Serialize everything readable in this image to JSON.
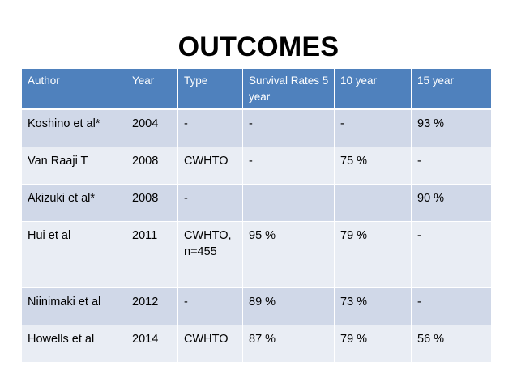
{
  "slide": {
    "title": "OUTCOMES"
  },
  "table": {
    "headers": {
      "author": "Author",
      "year": "Year",
      "type": "Type",
      "survival_5": "Survival Rates 5 year",
      "survival_10": "10  year",
      "survival_15": "15 year"
    },
    "rows": [
      {
        "author": "Koshino et al*",
        "year": "2004",
        "type": "-",
        "s5": "-",
        "s10": "-",
        "s15": "93 %"
      },
      {
        "author": "Van Raaji T",
        "year": "2008",
        "type": "CWHTO",
        "s5": "-",
        "s10": "75 %",
        "s15": "-"
      },
      {
        "author": "Akizuki et al*",
        "year": "2008",
        "type": "-",
        "s5": "",
        "s10": "",
        "s15": "90 %"
      },
      {
        "author": "Hui et al",
        "year": "2011",
        "type": "CWHTO, n=455",
        "s5": "95 %",
        "s10": "79 %",
        "s15": "-"
      },
      {
        "author": "Niinimaki et al",
        "year": "2012",
        "type": "-",
        "s5": "89 %",
        "s10": "73 %",
        "s15": "-"
      },
      {
        "author": "Howells et al",
        "year": "2014",
        "type": "CWHTO",
        "s5": "87 %",
        "s10": "79 %",
        "s15": "56 %"
      }
    ]
  },
  "colors": {
    "header": "#4f81bd",
    "row_odd": "#d0d8e8",
    "row_even": "#e9edf4"
  }
}
